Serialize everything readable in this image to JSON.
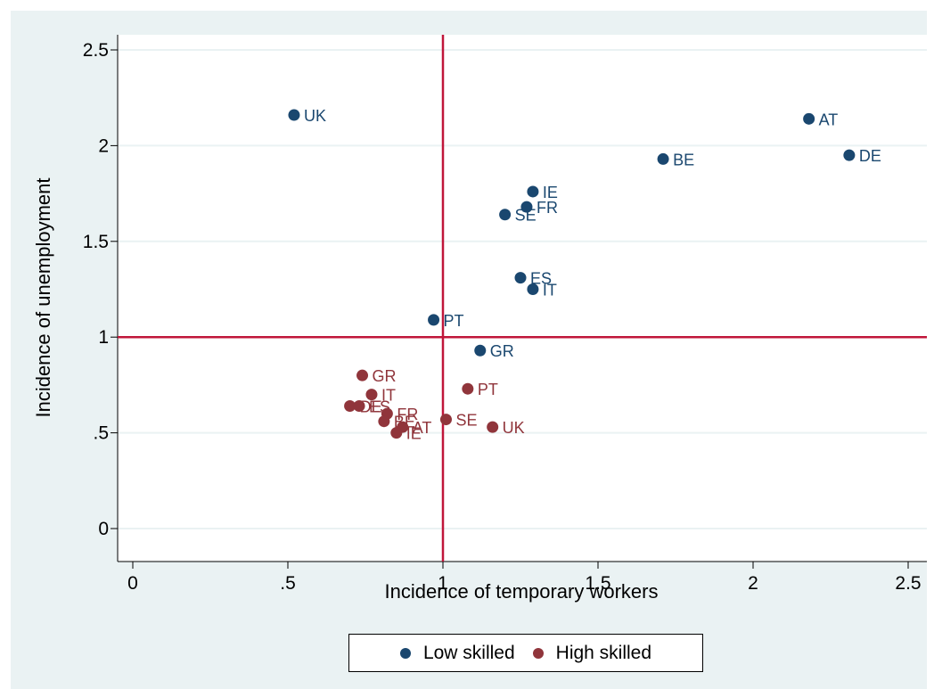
{
  "chart_data": {
    "type": "scatter",
    "xlabel": "Incidence of temporary workers",
    "ylabel": "Incidence of unemployment",
    "xlim": [
      -0.05,
      2.55
    ],
    "ylim": [
      -0.05,
      2.6
    ],
    "x_ticks": [
      0,
      0.5,
      1,
      1.5,
      2,
      2.5
    ],
    "x_tick_labels": [
      "0",
      ".5",
      "1",
      "1.5",
      "2",
      "2.5"
    ],
    "y_ticks": [
      0,
      0.5,
      1,
      1.5,
      2,
      2.5
    ],
    "y_tick_labels": [
      "0",
      ".5",
      "1",
      "1.5",
      "2",
      "2.5"
    ],
    "grid": "horizontal",
    "reference_lines": {
      "x": 1,
      "y": 1,
      "color": "#c0163a"
    },
    "legend_position": "bottom",
    "series": [
      {
        "name": "Low skilled",
        "color": "#1a476f",
        "points": [
          {
            "label": "UK",
            "x": 0.52,
            "y": 2.16
          },
          {
            "label": "AT",
            "x": 2.18,
            "y": 2.14
          },
          {
            "label": "DE",
            "x": 2.31,
            "y": 1.95
          },
          {
            "label": "BE",
            "x": 1.71,
            "y": 1.93
          },
          {
            "label": "IE",
            "x": 1.29,
            "y": 1.76
          },
          {
            "label": "FR",
            "x": 1.27,
            "y": 1.68
          },
          {
            "label": "SE",
            "x": 1.2,
            "y": 1.64
          },
          {
            "label": "ES",
            "x": 1.25,
            "y": 1.31
          },
          {
            "label": "IT",
            "x": 1.29,
            "y": 1.25
          },
          {
            "label": "PT",
            "x": 0.97,
            "y": 1.09
          },
          {
            "label": "GR",
            "x": 1.12,
            "y": 0.93
          }
        ]
      },
      {
        "name": "High skilled",
        "color": "#90353b",
        "points": [
          {
            "label": "GR",
            "x": 0.74,
            "y": 0.8
          },
          {
            "label": "PT",
            "x": 1.08,
            "y": 0.73
          },
          {
            "label": "IT",
            "x": 0.77,
            "y": 0.7
          },
          {
            "label": "DE",
            "x": 0.7,
            "y": 0.64
          },
          {
            "label": "ES",
            "x": 0.73,
            "y": 0.64
          },
          {
            "label": "FR",
            "x": 0.82,
            "y": 0.6
          },
          {
            "label": "BE",
            "x": 0.81,
            "y": 0.56
          },
          {
            "label": "SE",
            "x": 1.01,
            "y": 0.57
          },
          {
            "label": "UK",
            "x": 1.16,
            "y": 0.53
          },
          {
            "label": "AT",
            "x": 0.87,
            "y": 0.53
          },
          {
            "label": "IE",
            "x": 0.85,
            "y": 0.5
          }
        ]
      }
    ]
  }
}
